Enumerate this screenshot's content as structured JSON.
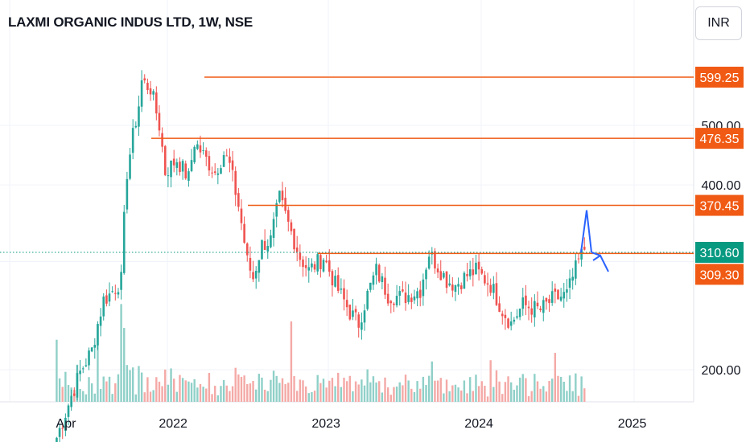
{
  "header": {
    "title": "LAXMI ORGANIC INDUS LTD, 1W, NSE",
    "currency_label": "INR"
  },
  "colors": {
    "up": "#26a69a",
    "down": "#ef5350",
    "vol_up": "#8fd0c8",
    "vol_down": "#f4a9a6",
    "level": "#f05a14",
    "arrow": "#2962ff",
    "current": "#089981"
  },
  "chart_data": {
    "type": "candlestick",
    "title": "LAXMI ORGANIC INDUS LTD, 1W, NSE",
    "price_axis": {
      "currency": "INR",
      "tick_labels": [
        "200.00",
        "400.00",
        "500.00"
      ],
      "scale": "log"
    },
    "time_axis": {
      "tick_labels": [
        "Apr",
        "2022",
        "2023",
        "2024",
        "2025"
      ]
    },
    "levels": [
      {
        "label": "599.25",
        "value": 599.25
      },
      {
        "label": "476.35",
        "value": 476.35
      },
      {
        "label": "370.45",
        "value": 370.45
      },
      {
        "label": "309.30",
        "value": 309.3
      }
    ],
    "current_price": {
      "label": "310.60",
      "value": 310.6
    },
    "weekly_close_anchors": [
      [
        "2021-03-29",
        155
      ],
      [
        "2021-04-19",
        170
      ],
      [
        "2021-05-24",
        198
      ],
      [
        "2021-06-21",
        215
      ],
      [
        "2021-07-19",
        260
      ],
      [
        "2021-08-02",
        265
      ],
      [
        "2021-08-30",
        280
      ],
      [
        "2021-09-13",
        420
      ],
      [
        "2021-10-11",
        540
      ],
      [
        "2021-10-18",
        590
      ],
      [
        "2021-11-08",
        575
      ],
      [
        "2021-11-29",
        500
      ],
      [
        "2021-12-13",
        420
      ],
      [
        "2022-01-10",
        440
      ],
      [
        "2022-02-07",
        410
      ],
      [
        "2022-02-21",
        470
      ],
      [
        "2022-03-21",
        440
      ],
      [
        "2022-04-11",
        420
      ],
      [
        "2022-05-02",
        450
      ],
      [
        "2022-05-16",
        430
      ],
      [
        "2022-06-06",
        370
      ],
      [
        "2022-06-27",
        300
      ],
      [
        "2022-07-11",
        282
      ],
      [
        "2022-08-01",
        320
      ],
      [
        "2022-08-22",
        325
      ],
      [
        "2022-09-12",
        380
      ],
      [
        "2022-10-03",
        345
      ],
      [
        "2022-10-31",
        305
      ],
      [
        "2022-11-21",
        290
      ],
      [
        "2022-12-26",
        305
      ],
      [
        "2023-01-23",
        275
      ],
      [
        "2023-02-27",
        248
      ],
      [
        "2023-03-20",
        238
      ],
      [
        "2023-04-10",
        265
      ],
      [
        "2023-05-01",
        290
      ],
      [
        "2023-05-29",
        265
      ],
      [
        "2023-07-03",
        262
      ],
      [
        "2023-08-14",
        270
      ],
      [
        "2023-09-04",
        310
      ],
      [
        "2023-09-18",
        300
      ],
      [
        "2023-10-16",
        280
      ],
      [
        "2023-11-06",
        275
      ],
      [
        "2023-12-04",
        285
      ],
      [
        "2023-12-25",
        290
      ],
      [
        "2024-01-29",
        275
      ],
      [
        "2024-02-26",
        250
      ],
      [
        "2024-03-18",
        238
      ],
      [
        "2024-04-15",
        255
      ],
      [
        "2024-05-27",
        250
      ],
      [
        "2024-06-24",
        260
      ],
      [
        "2024-07-29",
        265
      ],
      [
        "2024-08-26",
        300
      ],
      [
        "2024-09-09",
        315
      ]
    ],
    "projection_arrow": [
      "310.60",
      "355"
    ]
  }
}
